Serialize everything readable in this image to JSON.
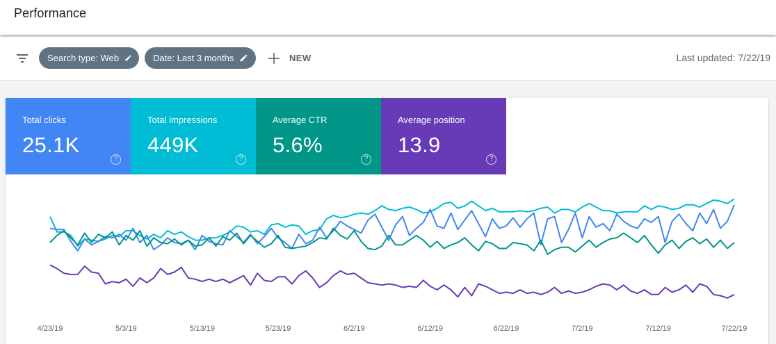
{
  "header": {
    "title": "Performance"
  },
  "filters": {
    "chips": [
      {
        "label": "Search type: Web"
      },
      {
        "label": "Date: Last 3 months"
      }
    ],
    "new_label": "NEW",
    "last_updated": "Last updated: 7/22/19",
    "icons": {
      "filter": "filter-icon",
      "edit": "pencil-icon",
      "add": "plus-icon"
    }
  },
  "metrics": [
    {
      "label": "Total clicks",
      "value": "25.1K",
      "color": "#4285f4"
    },
    {
      "label": "Total impressions",
      "value": "449K",
      "color": "#00bcd4"
    },
    {
      "label": "Average CTR",
      "value": "5.6%",
      "color": "#009688"
    },
    {
      "label": "Average position",
      "value": "13.9",
      "color": "#673ab7"
    }
  ],
  "chart_data": {
    "type": "line",
    "x_start": "2019-04-23",
    "x_end": "2019-07-22",
    "x_tick_labels": [
      "4/23/19",
      "5/3/19",
      "5/13/19",
      "5/23/19",
      "6/2/19",
      "6/12/19",
      "6/22/19",
      "7/2/19",
      "7/12/19",
      "7/22/19"
    ],
    "series": [
      {
        "color": "#00bcd4",
        "values": [
          0.82,
          0.69,
          0.69,
          0.66,
          0.57,
          0.63,
          0.62,
          0.61,
          0.63,
          0.66,
          0.65,
          0.7,
          0.7,
          0.66,
          0.63,
          0.67,
          0.64,
          0.7,
          0.67,
          0.69,
          0.65,
          0.62,
          0.62,
          0.64,
          0.64,
          0.66,
          0.69,
          0.74,
          0.73,
          0.69,
          0.7,
          0.67,
          0.75,
          0.76,
          0.73,
          0.75,
          0.74,
          0.67,
          0.7,
          0.71,
          0.8,
          0.83,
          0.81,
          0.82,
          0.84,
          0.85,
          0.84,
          0.87,
          0.91,
          0.88,
          0.87,
          0.89,
          0.9,
          0.88,
          0.85,
          0.86,
          0.89,
          0.93,
          0.94,
          0.89,
          0.91,
          0.95,
          0.91,
          0.87,
          0.89,
          0.86,
          0.86,
          0.86,
          0.87,
          0.86,
          0.87,
          0.89,
          0.9,
          0.85,
          0.88,
          0.88,
          0.86,
          0.9,
          0.93,
          0.9,
          0.87,
          0.87,
          0.85,
          0.86,
          0.86,
          0.86,
          0.91,
          0.88,
          0.91,
          0.9,
          0.88,
          0.89,
          0.92,
          0.92,
          0.9,
          0.93,
          0.96,
          0.95,
          0.93,
          0.97
        ]
      },
      {
        "color": "#4285f4",
        "values": [
          0.72,
          0.71,
          0.71,
          0.61,
          0.53,
          0.63,
          0.58,
          0.61,
          0.65,
          0.64,
          0.67,
          0.62,
          0.72,
          0.6,
          0.66,
          0.54,
          0.58,
          0.64,
          0.6,
          0.59,
          0.62,
          0.54,
          0.66,
          0.61,
          0.59,
          0.58,
          0.7,
          0.65,
          0.6,
          0.67,
          0.59,
          0.65,
          0.72,
          0.64,
          0.6,
          0.55,
          0.67,
          0.59,
          0.62,
          0.73,
          0.64,
          0.7,
          0.78,
          0.74,
          0.71,
          0.68,
          0.79,
          0.84,
          0.73,
          0.62,
          0.75,
          0.82,
          0.66,
          0.72,
          0.77,
          0.88,
          0.74,
          0.72,
          0.85,
          0.71,
          0.79,
          0.87,
          0.76,
          0.65,
          0.8,
          0.72,
          0.74,
          0.81,
          0.73,
          0.8,
          0.85,
          0.58,
          0.8,
          0.82,
          0.6,
          0.71,
          0.85,
          0.64,
          0.82,
          0.73,
          0.76,
          0.7,
          0.84,
          0.78,
          0.74,
          0.72,
          0.8,
          0.77,
          0.82,
          0.6,
          0.78,
          0.84,
          0.76,
          0.7,
          0.85,
          0.76,
          0.88,
          0.72,
          0.78,
          0.92
        ]
      },
      {
        "color": "#009688",
        "values": [
          0.6,
          0.66,
          0.7,
          0.64,
          0.58,
          0.68,
          0.6,
          0.67,
          0.64,
          0.69,
          0.58,
          0.66,
          0.62,
          0.7,
          0.57,
          0.64,
          0.6,
          0.59,
          0.63,
          0.58,
          0.62,
          0.57,
          0.58,
          0.64,
          0.57,
          0.65,
          0.62,
          0.68,
          0.59,
          0.66,
          0.61,
          0.56,
          0.59,
          0.66,
          0.56,
          0.55,
          0.56,
          0.57,
          0.6,
          0.64,
          0.63,
          0.72,
          0.66,
          0.63,
          0.7,
          0.61,
          0.55,
          0.54,
          0.57,
          0.66,
          0.58,
          0.58,
          0.62,
          0.66,
          0.62,
          0.56,
          0.61,
          0.55,
          0.58,
          0.6,
          0.64,
          0.58,
          0.53,
          0.61,
          0.59,
          0.55,
          0.55,
          0.6,
          0.59,
          0.58,
          0.53,
          0.62,
          0.5,
          0.54,
          0.56,
          0.56,
          0.52,
          0.57,
          0.62,
          0.56,
          0.6,
          0.63,
          0.64,
          0.68,
          0.64,
          0.6,
          0.66,
          0.58,
          0.51,
          0.58,
          0.62,
          0.55,
          0.61,
          0.64,
          0.59,
          0.63,
          0.56,
          0.62,
          0.55,
          0.6
        ]
      },
      {
        "color": "#673ab7",
        "values": [
          0.41,
          0.38,
          0.34,
          0.33,
          0.33,
          0.4,
          0.35,
          0.34,
          0.25,
          0.27,
          0.26,
          0.29,
          0.23,
          0.3,
          0.26,
          0.3,
          0.38,
          0.33,
          0.35,
          0.39,
          0.3,
          0.29,
          0.27,
          0.29,
          0.27,
          0.29,
          0.26,
          0.29,
          0.32,
          0.24,
          0.34,
          0.28,
          0.27,
          0.31,
          0.31,
          0.25,
          0.32,
          0.36,
          0.3,
          0.22,
          0.26,
          0.32,
          0.36,
          0.33,
          0.34,
          0.3,
          0.26,
          0.25,
          0.24,
          0.25,
          0.24,
          0.22,
          0.23,
          0.22,
          0.28,
          0.23,
          0.2,
          0.24,
          0.2,
          0.14,
          0.22,
          0.15,
          0.25,
          0.23,
          0.2,
          0.17,
          0.18,
          0.17,
          0.2,
          0.17,
          0.18,
          0.16,
          0.18,
          0.22,
          0.17,
          0.19,
          0.17,
          0.18,
          0.2,
          0.23,
          0.25,
          0.24,
          0.2,
          0.24,
          0.19,
          0.17,
          0.2,
          0.16,
          0.16,
          0.22,
          0.18,
          0.2,
          0.24,
          0.18,
          0.25,
          0.23,
          0.16,
          0.15,
          0.13,
          0.16
        ]
      }
    ],
    "ylim": [
      0,
      1
    ],
    "grid": false,
    "legend": "none"
  }
}
